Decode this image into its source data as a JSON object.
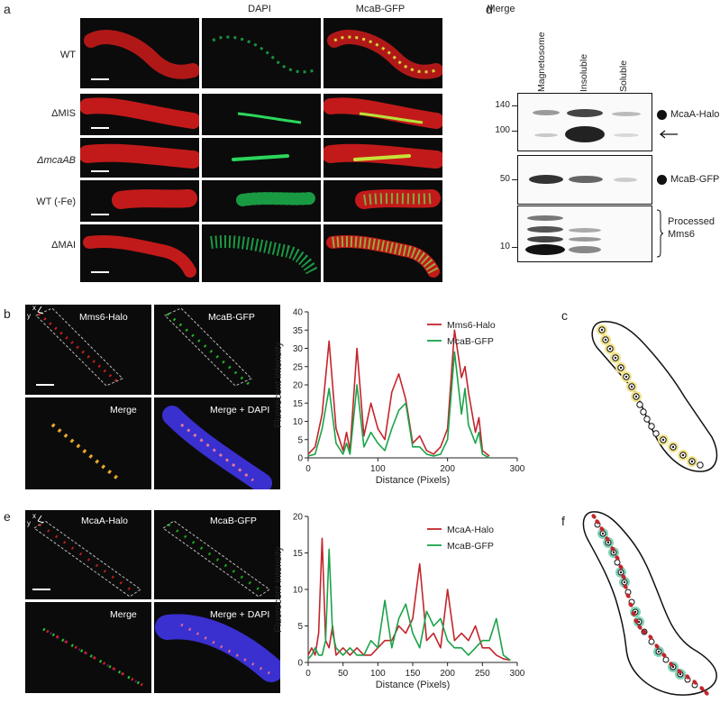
{
  "panel_a": {
    "letter": "a",
    "columns": [
      "DAPI",
      "McaB-GFP",
      "Merge"
    ],
    "rows": [
      "WT",
      "ΔMIS",
      "ΔmcaAB",
      "WT (-Fe)",
      "ΔMAI"
    ]
  },
  "panel_b": {
    "letter": "b",
    "tiles": [
      "Mms6-Halo",
      "McaB-GFP",
      "Merge",
      "Merge + DAPI"
    ],
    "axis_marks": [
      "x",
      "y"
    ]
  },
  "panel_c": {
    "letter": "c"
  },
  "panel_d": {
    "letter": "d",
    "lanes": [
      "Magnetosome",
      "Insoluble",
      "Soluble"
    ],
    "mw_top": [
      "140",
      "100"
    ],
    "mw_mid": [
      "50"
    ],
    "mw_bot": [
      "10"
    ],
    "labels": {
      "mcaa": "McaA-Halo",
      "mcab": "McaB-GFP",
      "mms6": "Processed Mms6"
    }
  },
  "panel_e": {
    "letter": "e",
    "tiles": [
      "McaA-Halo",
      "McaB-GFP",
      "Merge",
      "Merge + DAPI"
    ],
    "axis_marks": [
      "x",
      "y"
    ]
  },
  "panel_f": {
    "letter": "f"
  },
  "colors": {
    "red": "#c3252b",
    "green": "#1aa34a",
    "yellow": "#f2e38a",
    "teal": "#7fd4b8"
  },
  "chart_data": [
    {
      "type": "line",
      "panel": "b",
      "xlabel": "Distance (Pixels)",
      "ylabel": "Fluorecent intensity",
      "xlim": [
        0,
        300
      ],
      "ylim": [
        0,
        40
      ],
      "xticks": [
        0,
        100,
        200,
        300
      ],
      "yticks": [
        0,
        5,
        10,
        15,
        20,
        25,
        30,
        35,
        40
      ],
      "series": [
        {
          "name": "Mms6-Halo",
          "color": "#c3252b",
          "x": [
            0,
            10,
            20,
            30,
            40,
            50,
            55,
            60,
            70,
            80,
            90,
            100,
            110,
            120,
            130,
            140,
            150,
            160,
            170,
            180,
            190,
            200,
            210,
            220,
            225,
            230,
            240,
            245,
            250,
            260
          ],
          "y": [
            1,
            3,
            12,
            32,
            8,
            2,
            7,
            2,
            30,
            6,
            15,
            8,
            5,
            18,
            23,
            16,
            4,
            6,
            2,
            1,
            3,
            8,
            35,
            22,
            25,
            18,
            7,
            11,
            2,
            0.5
          ]
        },
        {
          "name": "McaB-GFP",
          "color": "#1aa34a",
          "x": [
            0,
            10,
            20,
            30,
            40,
            50,
            55,
            60,
            70,
            80,
            90,
            100,
            110,
            120,
            130,
            140,
            150,
            160,
            170,
            180,
            190,
            200,
            210,
            220,
            225,
            230,
            240,
            245,
            250,
            260
          ],
          "y": [
            0.5,
            1,
            8,
            19,
            4,
            1,
            4,
            1,
            20,
            3,
            7,
            4,
            2,
            8,
            13,
            15,
            3,
            3,
            1,
            0.5,
            1,
            5,
            29,
            12,
            19,
            9,
            4,
            7,
            1,
            0
          ]
        }
      ],
      "legend": "top-right"
    },
    {
      "type": "line",
      "panel": "e",
      "xlabel": "Distance (Pixels)",
      "ylabel": "Fluorecent intensity",
      "xlim": [
        0,
        300
      ],
      "ylim": [
        0,
        20
      ],
      "xticks": [
        0,
        50,
        100,
        150,
        200,
        250,
        300
      ],
      "yticks": [
        0,
        5,
        10,
        15,
        20
      ],
      "series": [
        {
          "name": "McaA-Halo",
          "color": "#c3252b",
          "x": [
            0,
            5,
            10,
            15,
            20,
            25,
            30,
            35,
            40,
            50,
            60,
            70,
            80,
            90,
            100,
            110,
            120,
            130,
            140,
            150,
            160,
            170,
            180,
            190,
            200,
            210,
            220,
            230,
            240,
            250,
            260,
            270,
            280,
            290
          ],
          "y": [
            1,
            2,
            1,
            4,
            17,
            3,
            2,
            5,
            1,
            2,
            1,
            2,
            1,
            1,
            2,
            3,
            3,
            5,
            4,
            6,
            13.5,
            3,
            4,
            2,
            10,
            3,
            4,
            3,
            5,
            2,
            2,
            1,
            0.5,
            0.3
          ]
        },
        {
          "name": "McaB-GFP",
          "color": "#1aa34a",
          "x": [
            0,
            5,
            10,
            15,
            20,
            25,
            30,
            35,
            40,
            50,
            60,
            70,
            80,
            90,
            100,
            110,
            120,
            130,
            140,
            150,
            160,
            170,
            180,
            190,
            200,
            210,
            220,
            230,
            240,
            250,
            260,
            270,
            280,
            290
          ],
          "y": [
            0.5,
            1,
            2,
            1,
            1,
            3,
            15.5,
            4,
            2,
            1,
            2,
            1,
            1,
            3,
            2,
            8.5,
            2,
            6,
            8,
            4,
            2,
            7,
            5,
            6,
            3,
            2,
            2,
            1,
            2,
            3,
            3,
            6,
            1,
            0.3
          ]
        }
      ],
      "legend": "top-right"
    }
  ]
}
